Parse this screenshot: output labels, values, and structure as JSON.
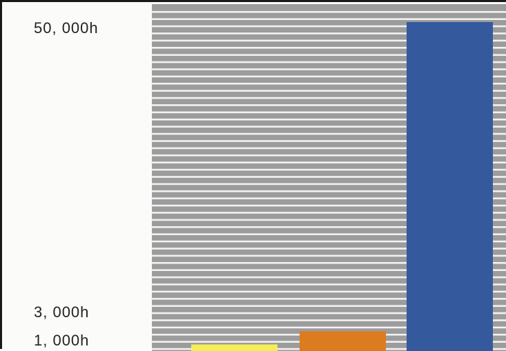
{
  "chart_data": {
    "type": "bar",
    "categories": [
      "",
      "",
      ""
    ],
    "values": [
      1000,
      3000,
      50000
    ],
    "bar_colors": [
      "#f6ee58",
      "#dc7c1f",
      "#345a9d"
    ],
    "ytick_labels": [
      {
        "value": 50000,
        "label": "50, 000h"
      },
      {
        "value": 3000,
        "label": "3, 000h"
      },
      {
        "value": 1000,
        "label": "1, 000h"
      }
    ],
    "ylim": [
      0,
      51000
    ],
    "grid": true,
    "plot_background": "#9c9c9c",
    "grid_color": "#f2f2f2",
    "title": "",
    "xlabel": "",
    "ylabel": ""
  }
}
